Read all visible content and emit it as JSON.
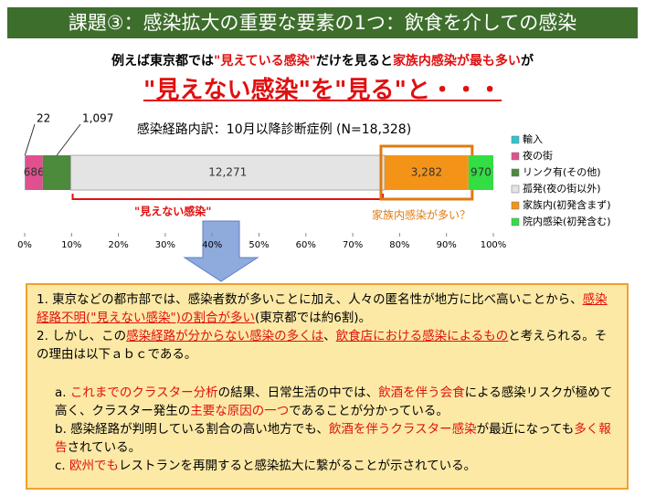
{
  "header": {
    "title": "課題③：感染拡大の重要な要素の1つ：飲食を介しての感染"
  },
  "lead": {
    "line1": [
      "例えば東京都では",
      "\"見えている感染\"",
      "だけを見ると",
      "家族内感染が最も多い",
      "が"
    ],
    "line2": "\"見えない感染\"を\"見る\"と・・・"
  },
  "chart_data": {
    "type": "stacked_bar_horizontal",
    "title": "感染経路内訳：10月以降診断症例 (N=18,328)",
    "categories": [
      null
    ],
    "series": [
      {
        "name": "輸入",
        "color": "#2fc4d0",
        "values": [
          22
        ],
        "value_labels": [
          "22"
        ]
      },
      {
        "name": "夜の街",
        "color": "#e0508f",
        "values": [
          686
        ],
        "value_labels": [
          "686"
        ]
      },
      {
        "name": "リンク有(その他)",
        "color": "#4c8a3c",
        "values": [
          1097
        ],
        "value_labels": [
          "1,097"
        ]
      },
      {
        "name": "孤発(夜の街以外)",
        "color": "#e4e4e4",
        "values": [
          12271
        ],
        "value_labels": [
          "12,271"
        ]
      },
      {
        "name": "家族内(初発含まず)",
        "color": "#f39419",
        "values": [
          3282
        ],
        "value_labels": [
          "3,282"
        ]
      },
      {
        "name": "院内感染(初発含む)",
        "color": "#33dd44",
        "values": [
          970
        ],
        "value_labels": [
          "970"
        ]
      }
    ],
    "xlim": [
      0,
      18328
    ],
    "xticks": [
      {
        "value": 0,
        "label": "0%"
      },
      {
        "value": 1832.8,
        "label": "10%"
      },
      {
        "value": 3665.6,
        "label": "20%"
      },
      {
        "value": 5498.4,
        "label": "30%"
      },
      {
        "value": 7331.2,
        "label": "40%"
      },
      {
        "value": 9164,
        "label": "50%"
      },
      {
        "value": 10996.8,
        "label": "60%"
      },
      {
        "value": 12829.6,
        "label": "70%"
      },
      {
        "value": 14662.4,
        "label": "80%"
      },
      {
        "value": 16495.2,
        "label": "90%"
      },
      {
        "value": 18328,
        "label": "100%"
      }
    ],
    "annotations": [
      "\"見えない感染\"",
      "家族内感染が多い？"
    ],
    "legend": "right"
  },
  "box": {
    "p1": [
      "1. 東京などの都市部では、感染者数が多いことに加え、人々の匿名性が地方に比べ高いことから、",
      "感染経路不明(\"見えない感染\")の割合が多い",
      "(東京都では約6割)。"
    ],
    "p2": [
      "2. しかし、この",
      "感染経路が分からない感染の多くは",
      "、",
      "飲食店における感染によるもの",
      "と考えられる。その理由は以下ａｂｃである。"
    ],
    "a": [
      "a. ",
      "これまでのクラスター分析",
      "の結果、日常生活の中では、",
      "飲酒を伴う会食",
      "による感染リスクが極めて高く、クラスター発生の",
      "主要な原因の一つ",
      "であることが分かっている。"
    ],
    "b": [
      "b. 感染経路が判明している割合の高い地方でも、",
      "飲酒を伴うクラスター感染",
      "が最近になっても",
      "多く報告",
      "されている。"
    ],
    "c": [
      "c. ",
      "欧州でも",
      "レストランを再開すると感染拡大に繋がることが示されている。"
    ]
  }
}
